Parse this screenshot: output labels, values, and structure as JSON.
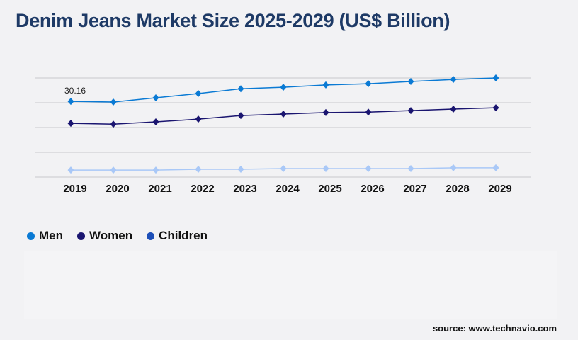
{
  "title": "Denim Jeans Market Size 2025-2029 (US$ Billion)",
  "source": "source: www.technavio.com",
  "chart_data": {
    "type": "line",
    "title": "Denim Jeans Market Size 2025-2029 (US$ Billion)",
    "x": [
      "2019",
      "2020",
      "2021",
      "2022",
      "2023",
      "2024",
      "2025",
      "2026",
      "2027",
      "2028",
      "2029"
    ],
    "ylim": [
      0,
      39.5
    ],
    "grid": true,
    "legend_placement": "bottom-left",
    "annotations": [
      {
        "series": "Men",
        "x": "2019",
        "label": "30.16"
      }
    ],
    "series": [
      {
        "name": "Men",
        "color": "#0a7ad4",
        "legend_color": "#0a7ad4",
        "values": [
          30.16,
          29.9,
          31.6,
          33.3,
          35.2,
          35.8,
          36.7,
          37.2,
          38.1,
          38.9,
          39.5
        ]
      },
      {
        "name": "Women",
        "color": "#1a1570",
        "legend_color": "#1a1570",
        "values": [
          21.4,
          21.1,
          22.0,
          23.1,
          24.5,
          25.1,
          25.7,
          25.9,
          26.5,
          27.1,
          27.6
        ]
      },
      {
        "name": "Children",
        "color": "#a9c8f7",
        "legend_color": "#1d4fb8",
        "values": [
          2.8,
          2.8,
          2.8,
          3.1,
          3.1,
          3.4,
          3.4,
          3.4,
          3.4,
          3.7,
          3.7
        ]
      }
    ]
  }
}
